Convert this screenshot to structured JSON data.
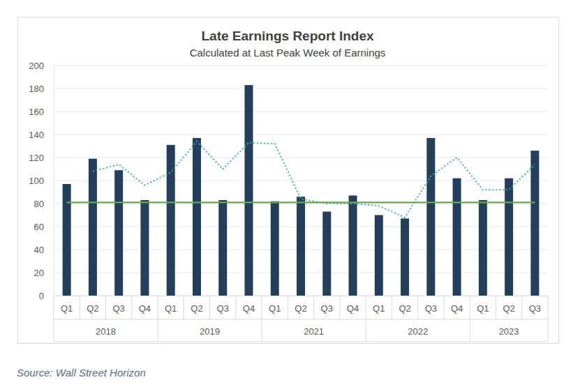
{
  "chart_data": {
    "type": "bar",
    "title": "Late Earnings Report Index",
    "subtitle": "Calculated at Last Peak Week of Earnings",
    "source": "Source: Wall Street Horizon",
    "categories": [
      "Q1",
      "Q2",
      "Q3",
      "Q4",
      "Q1",
      "Q2",
      "Q3",
      "Q4",
      "Q1",
      "Q2",
      "Q3",
      "Q4",
      "Q1",
      "Q2",
      "Q3",
      "Q4",
      "Q1",
      "Q2",
      "Q3"
    ],
    "group_labels": [
      "2018",
      "2018",
      "2018",
      "2018",
      "2019",
      "2019",
      "2019",
      "2019",
      "2021",
      "2021",
      "2021",
      "2021",
      "2022",
      "2022",
      "2022",
      "2022",
      "2023",
      "2023",
      "2023"
    ],
    "series": [
      {
        "type": "bar",
        "color": "#243f5c",
        "values": [
          97,
          119,
          109,
          83,
          131,
          137,
          83,
          183,
          82,
          86,
          73,
          87,
          70,
          67,
          137,
          102,
          83,
          102,
          126
        ]
      },
      {
        "type": "line",
        "color": "#3ab0b5",
        "line_style": "dotted",
        "values": [
          null,
          108,
          114,
          96,
          107,
          134,
          110,
          133,
          132,
          84,
          80,
          80,
          78,
          68,
          104,
          120,
          92,
          92,
          114
        ]
      },
      {
        "type": "line",
        "color": "#6aa84f",
        "line_style": "solid",
        "values": [
          81,
          81,
          81,
          81,
          81,
          81,
          81,
          81,
          81,
          81,
          81,
          81,
          81,
          81,
          81,
          81,
          81,
          81,
          81
        ]
      }
    ],
    "ylim": [
      0,
      200
    ],
    "yticks": [
      0,
      20,
      40,
      60,
      80,
      100,
      120,
      140,
      160,
      180,
      200
    ],
    "grid": true
  }
}
